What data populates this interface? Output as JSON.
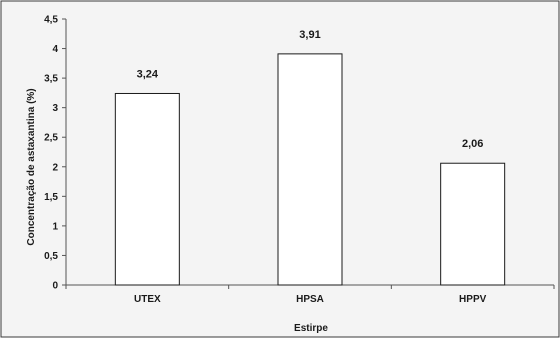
{
  "chart_data": {
    "type": "bar",
    "title": "",
    "xlabel": "Estirpe",
    "ylabel": "Concentração de astaxantina (%)",
    "categories": [
      "UTEX",
      "HPSA",
      "HPPV"
    ],
    "values": [
      3.24,
      3.91,
      2.06
    ],
    "data_labels": [
      "3,24",
      "3,91",
      "2,06"
    ],
    "ylim": [
      0,
      4.5
    ],
    "y_ticks": [
      0,
      0.5,
      1,
      1.5,
      2,
      2.5,
      3,
      3.5,
      4,
      4.5
    ],
    "y_tick_labels": [
      "0",
      "0,5",
      "1",
      "1,5",
      "2",
      "2,5",
      "3",
      "3,5",
      "4",
      "4,5"
    ],
    "grid": false,
    "legend": "none",
    "colors": {
      "bar_fill": "#ffffff",
      "bar_stroke": "#1a1a1a",
      "axis": "#555555",
      "frame_bg": "#f4f4f4",
      "frame_border": "#3a3a3a"
    }
  }
}
